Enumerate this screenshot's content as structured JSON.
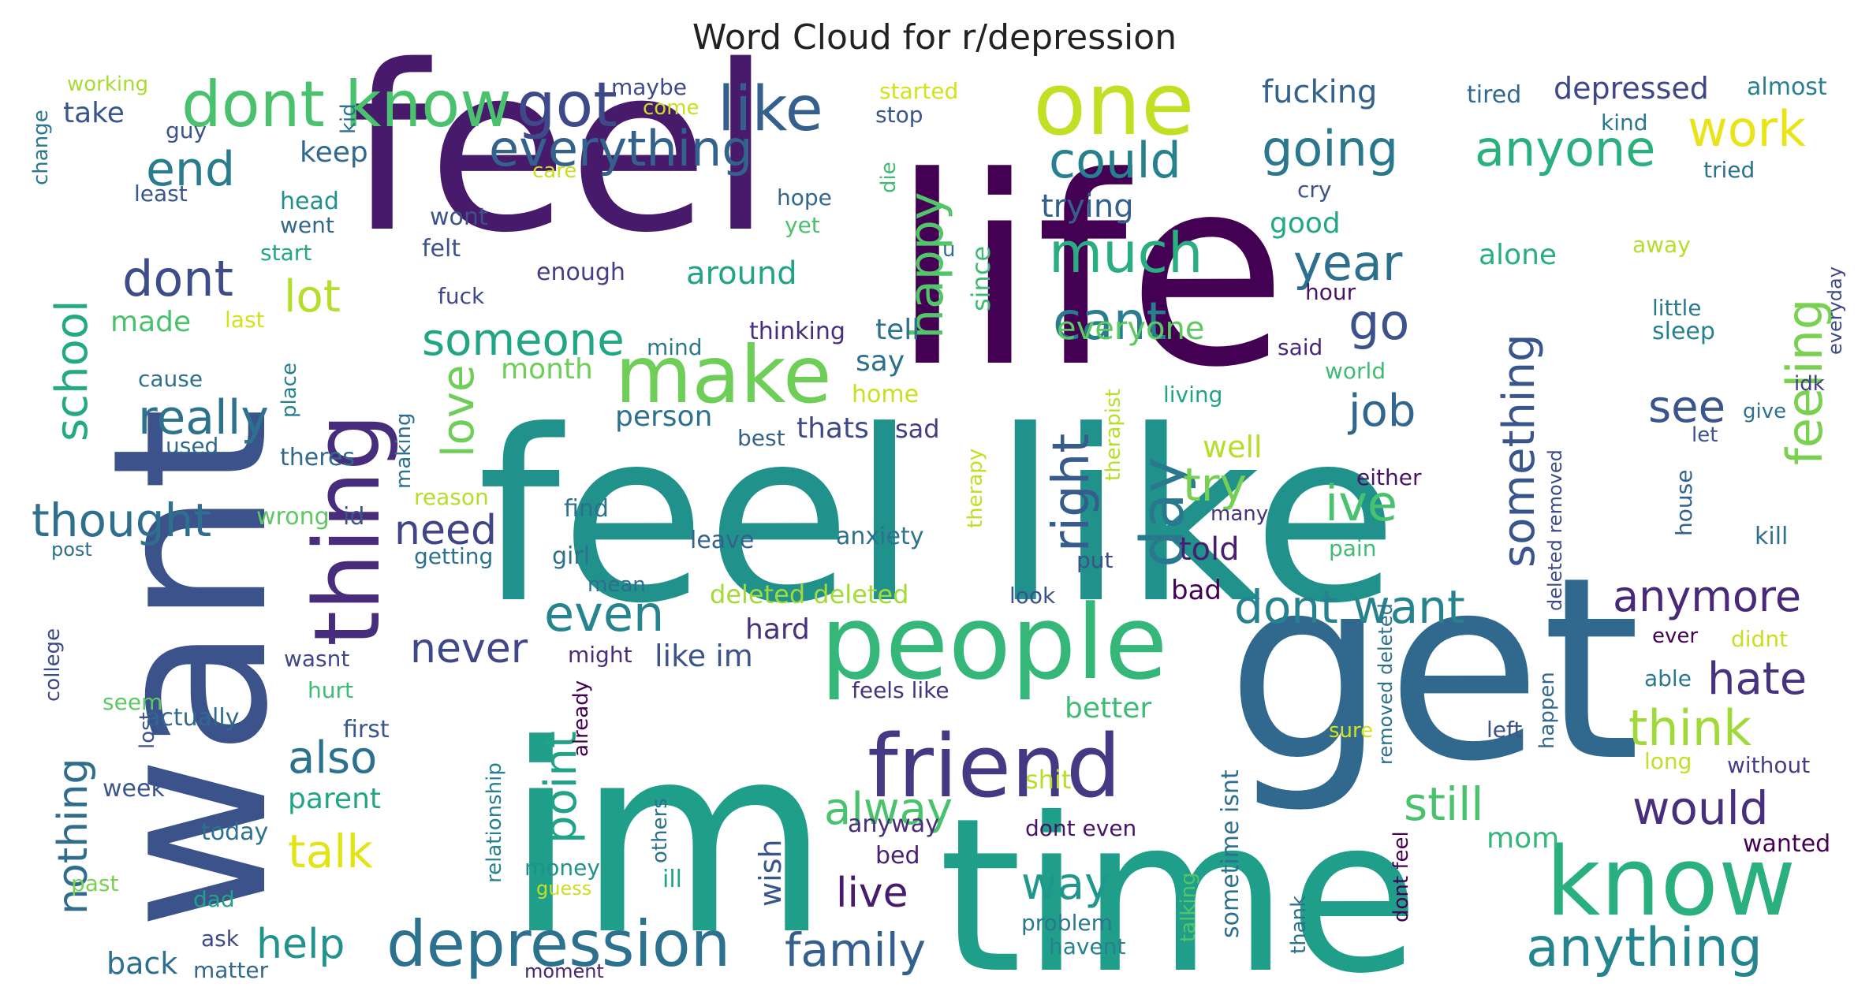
{
  "chart_data": {
    "type": "wordcloud",
    "title": "Word Cloud for r/depression",
    "words": [
      {
        "text": "feel",
        "size": 290,
        "color": "#481a6c"
      },
      {
        "text": "life",
        "size": 330,
        "color": "#440154"
      },
      {
        "text": "want",
        "size": 270,
        "color": "#3b528b"
      },
      {
        "text": "feel like",
        "size": 300,
        "color": "#21918c"
      },
      {
        "text": "im",
        "size": 330,
        "color": "#1f9e89"
      },
      {
        "text": "get",
        "size": 320,
        "color": "#31688e"
      },
      {
        "text": "time",
        "size": 270,
        "color": "#1f9e89"
      },
      {
        "text": "one",
        "size": 110,
        "color": "#c2df23"
      },
      {
        "text": "people",
        "size": 130,
        "color": "#35b779"
      },
      {
        "text": "thing",
        "size": 115,
        "color": "#472d7b"
      },
      {
        "text": "friend",
        "size": 110,
        "color": "#443983"
      },
      {
        "text": "know",
        "size": 120,
        "color": "#2ab07f"
      },
      {
        "text": "make",
        "size": 100,
        "color": "#6ece58"
      },
      {
        "text": "dont know",
        "size": 80,
        "color": "#4ac16d"
      },
      {
        "text": "got",
        "size": 78,
        "color": "#3e4989"
      },
      {
        "text": "like",
        "size": 78,
        "color": "#355f8d"
      },
      {
        "text": "depression",
        "size": 80,
        "color": "#2c728e"
      },
      {
        "text": "anything",
        "size": 68,
        "color": "#25858e"
      },
      {
        "text": "work",
        "size": 62,
        "color": "#e8e419"
      },
      {
        "text": "everything",
        "size": 62,
        "color": "#33638d"
      },
      {
        "text": "going",
        "size": 62,
        "color": "#2a788e"
      },
      {
        "text": "anyone",
        "size": 62,
        "color": "#2ab07f"
      },
      {
        "text": "could",
        "size": 62,
        "color": "#26818e"
      },
      {
        "text": "much",
        "size": 70,
        "color": "#29af7f"
      },
      {
        "text": "cant",
        "size": 66,
        "color": "#287d8e"
      },
      {
        "text": "year",
        "size": 62,
        "color": "#2d708e"
      },
      {
        "text": "feeling",
        "size": 62,
        "color": "#7ad151"
      },
      {
        "text": "end",
        "size": 60,
        "color": "#287c8e"
      },
      {
        "text": "dont",
        "size": 62,
        "color": "#3e4c8a"
      },
      {
        "text": "lot",
        "size": 56,
        "color": "#b5de2b"
      },
      {
        "text": "happy",
        "size": 60,
        "color": "#52c569"
      },
      {
        "text": "school",
        "size": 56,
        "color": "#24aa83"
      },
      {
        "text": "someone",
        "size": 56,
        "color": "#21a685"
      },
      {
        "text": "go",
        "size": 62,
        "color": "#3b528b"
      },
      {
        "text": "day",
        "size": 76,
        "color": "#2a788e"
      },
      {
        "text": "right",
        "size": 64,
        "color": "#365c8d"
      },
      {
        "text": "something",
        "size": 56,
        "color": "#39568c"
      },
      {
        "text": "see",
        "size": 56,
        "color": "#3a548c"
      },
      {
        "text": "job",
        "size": 56,
        "color": "#31678e"
      },
      {
        "text": "really",
        "size": 60,
        "color": "#2c728e"
      },
      {
        "text": "love",
        "size": 56,
        "color": "#6ece58"
      },
      {
        "text": "thought",
        "size": 58,
        "color": "#2e6e8e"
      },
      {
        "text": "need",
        "size": 52,
        "color": "#414487"
      },
      {
        "text": "try",
        "size": 58,
        "color": "#75d054"
      },
      {
        "text": "ive",
        "size": 62,
        "color": "#4ac16d"
      },
      {
        "text": "even",
        "size": 62,
        "color": "#25848e"
      },
      {
        "text": "dont want",
        "size": 58,
        "color": "#26828e"
      },
      {
        "text": "anymore",
        "size": 54,
        "color": "#482979"
      },
      {
        "text": "never",
        "size": 52,
        "color": "#3f4788"
      },
      {
        "text": "point",
        "size": 56,
        "color": "#20a386"
      },
      {
        "text": "hate",
        "size": 56,
        "color": "#46337f"
      },
      {
        "text": "think",
        "size": 62,
        "color": "#a0da39"
      },
      {
        "text": "also",
        "size": 56,
        "color": "#2c728e"
      },
      {
        "text": "alway",
        "size": 56,
        "color": "#4ac16d"
      },
      {
        "text": "still",
        "size": 58,
        "color": "#4ac16d"
      },
      {
        "text": "would",
        "size": 58,
        "color": "#472f7d"
      },
      {
        "text": "nothing",
        "size": 52,
        "color": "#2f6c8e"
      },
      {
        "text": "talk",
        "size": 58,
        "color": "#e2e418"
      },
      {
        "text": "help",
        "size": 52,
        "color": "#20938c"
      },
      {
        "text": "way",
        "size": 56,
        "color": "#1f988b"
      },
      {
        "text": "family",
        "size": 58,
        "color": "#34608d"
      },
      {
        "text": "live",
        "size": 52,
        "color": "#481b6d"
      },
      {
        "text": "wish",
        "size": 38,
        "color": "#39568c"
      },
      {
        "text": "fucking",
        "size": 40,
        "color": "#33638d"
      },
      {
        "text": "depressed",
        "size": 38,
        "color": "#3f4788"
      },
      {
        "text": "almost",
        "size": 30,
        "color": "#26818e"
      },
      {
        "text": "tired",
        "size": 30,
        "color": "#31688e"
      },
      {
        "text": "kind",
        "size": 28,
        "color": "#2a788e"
      },
      {
        "text": "tried",
        "size": 28,
        "color": "#2c728e"
      },
      {
        "text": "cry",
        "size": 28,
        "color": "#3b528b"
      },
      {
        "text": "good",
        "size": 36,
        "color": "#22a884"
      },
      {
        "text": "trying",
        "size": 40,
        "color": "#34608d"
      },
      {
        "text": "alone",
        "size": 36,
        "color": "#29af7f"
      },
      {
        "text": "away",
        "size": 28,
        "color": "#b5de2b"
      },
      {
        "text": "little",
        "size": 28,
        "color": "#2a788e"
      },
      {
        "text": "sleep",
        "size": 30,
        "color": "#26818e"
      },
      {
        "text": "everyday",
        "size": 24,
        "color": "#3e4989"
      },
      {
        "text": "idk",
        "size": 26,
        "color": "#433e85"
      },
      {
        "text": "give",
        "size": 26,
        "color": "#2d718e"
      },
      {
        "text": "let",
        "size": 26,
        "color": "#3b528b"
      },
      {
        "text": "hour",
        "size": 28,
        "color": "#471365"
      },
      {
        "text": "said",
        "size": 28,
        "color": "#482677"
      },
      {
        "text": "world",
        "size": 28,
        "color": "#3fbc73"
      },
      {
        "text": "everyone",
        "size": 40,
        "color": "#5ec962"
      },
      {
        "text": "therapist",
        "size": 26,
        "color": "#b8de29"
      },
      {
        "text": "living",
        "size": 28,
        "color": "#20a386"
      },
      {
        "text": "well",
        "size": 38,
        "color": "#b5de2b"
      },
      {
        "text": "told",
        "size": 40,
        "color": "#481f70"
      },
      {
        "text": "either",
        "size": 28,
        "color": "#471365"
      },
      {
        "text": "many",
        "size": 26,
        "color": "#46327e"
      },
      {
        "text": "pain",
        "size": 28,
        "color": "#3fbc73"
      },
      {
        "text": "kill",
        "size": 30,
        "color": "#2d708e"
      },
      {
        "text": "house",
        "size": 28,
        "color": "#33638d"
      },
      {
        "text": "deleted removed",
        "size": 24,
        "color": "#3e4989"
      },
      {
        "text": "deleted deleted",
        "size": 32,
        "color": "#a2da37"
      },
      {
        "text": "removed deleted",
        "size": 24,
        "color": "#2d708e"
      },
      {
        "text": "bad",
        "size": 34,
        "color": "#440154"
      },
      {
        "text": "look",
        "size": 28,
        "color": "#3b528b"
      },
      {
        "text": "better",
        "size": 36,
        "color": "#3fbc73"
      },
      {
        "text": "sometime isnt",
        "size": 30,
        "color": "#2d708e"
      },
      {
        "text": "sure",
        "size": 26,
        "color": "#d2e21b"
      },
      {
        "text": "ever",
        "size": 26,
        "color": "#440154"
      },
      {
        "text": "didnt",
        "size": 28,
        "color": "#c8e020"
      },
      {
        "text": "able",
        "size": 28,
        "color": "#2a788e"
      },
      {
        "text": "happen",
        "size": 26,
        "color": "#31688e"
      },
      {
        "text": "left",
        "size": 28,
        "color": "#3b528b"
      },
      {
        "text": "long",
        "size": 28,
        "color": "#c2df23"
      },
      {
        "text": "without",
        "size": 28,
        "color": "#433e85"
      },
      {
        "text": "mom",
        "size": 36,
        "color": "#35b779"
      },
      {
        "text": "wanted",
        "size": 30,
        "color": "#440154"
      },
      {
        "text": "dont feel",
        "size": 26,
        "color": "#440154"
      },
      {
        "text": "thank",
        "size": 26,
        "color": "#2c728e"
      },
      {
        "text": "talking",
        "size": 26,
        "color": "#52c569"
      },
      {
        "text": "dont even",
        "size": 28,
        "color": "#481467"
      },
      {
        "text": "bed",
        "size": 30,
        "color": "#482173"
      },
      {
        "text": "anyway",
        "size": 30,
        "color": "#472d7b"
      },
      {
        "text": "problem",
        "size": 28,
        "color": "#2a788e"
      },
      {
        "text": "havent",
        "size": 28,
        "color": "#26818e"
      },
      {
        "text": "shit",
        "size": 32,
        "color": "#b5de2b"
      },
      {
        "text": "feels like",
        "size": 28,
        "color": "#46337f"
      },
      {
        "text": "hard",
        "size": 36,
        "color": "#46327e"
      },
      {
        "text": "like im",
        "size": 38,
        "color": "#3b528b"
      },
      {
        "text": "might",
        "size": 28,
        "color": "#472d7b"
      },
      {
        "text": "already",
        "size": 26,
        "color": "#440154"
      },
      {
        "text": "others",
        "size": 26,
        "color": "#2c728e"
      },
      {
        "text": "ill",
        "size": 30,
        "color": "#20a386"
      },
      {
        "text": "money",
        "size": 28,
        "color": "#21918c"
      },
      {
        "text": "guess",
        "size": 24,
        "color": "#c8e020"
      },
      {
        "text": "relationship",
        "size": 26,
        "color": "#26818e"
      },
      {
        "text": "first",
        "size": 30,
        "color": "#39568c"
      },
      {
        "text": "parent",
        "size": 36,
        "color": "#21a585"
      },
      {
        "text": "hurt",
        "size": 28,
        "color": "#3fbc73"
      },
      {
        "text": "wasnt",
        "size": 28,
        "color": "#3f4788"
      },
      {
        "text": "seem",
        "size": 28,
        "color": "#5ec962"
      },
      {
        "text": "actually",
        "size": 30,
        "color": "#31688e"
      },
      {
        "text": "lost",
        "size": 26,
        "color": "#3b528b"
      },
      {
        "text": "college",
        "size": 26,
        "color": "#3e4989"
      },
      {
        "text": "week",
        "size": 30,
        "color": "#39568c"
      },
      {
        "text": "today",
        "size": 30,
        "color": "#2c728e"
      },
      {
        "text": "past",
        "size": 28,
        "color": "#7ad151"
      },
      {
        "text": "dad",
        "size": 28,
        "color": "#20a386"
      },
      {
        "text": "ask",
        "size": 28,
        "color": "#3e4989"
      },
      {
        "text": "back",
        "size": 38,
        "color": "#2d708e"
      },
      {
        "text": "matter",
        "size": 28,
        "color": "#31688e"
      },
      {
        "text": "moment",
        "size": 24,
        "color": "#482677"
      },
      {
        "text": "post",
        "size": 24,
        "color": "#2d708e"
      },
      {
        "text": "getting",
        "size": 28,
        "color": "#2d708e"
      },
      {
        "text": "girl",
        "size": 30,
        "color": "#2d708e"
      },
      {
        "text": "mean",
        "size": 26,
        "color": "#2d708e"
      },
      {
        "text": "id",
        "size": 30,
        "color": "#3b528b"
      },
      {
        "text": "wrong",
        "size": 30,
        "color": "#5ec962"
      },
      {
        "text": "reason",
        "size": 28,
        "color": "#b5de2b"
      },
      {
        "text": "find",
        "size": 30,
        "color": "#2c728e"
      },
      {
        "text": "leave",
        "size": 30,
        "color": "#33638d"
      },
      {
        "text": "anxiety",
        "size": 30,
        "color": "#2c728e"
      },
      {
        "text": "put",
        "size": 28,
        "color": "#3b528b"
      },
      {
        "text": "therapy",
        "size": 26,
        "color": "#c2df23"
      },
      {
        "text": "best",
        "size": 28,
        "color": "#33638d"
      },
      {
        "text": "thats",
        "size": 36,
        "color": "#3e4989"
      },
      {
        "text": "sad",
        "size": 32,
        "color": "#433e85"
      },
      {
        "text": "person",
        "size": 36,
        "color": "#2c728e"
      },
      {
        "text": "month",
        "size": 36,
        "color": "#6ece58"
      },
      {
        "text": "home",
        "size": 30,
        "color": "#c8e020"
      },
      {
        "text": "say",
        "size": 36,
        "color": "#2d708e"
      },
      {
        "text": "tell",
        "size": 36,
        "color": "#2c728e"
      },
      {
        "text": "thinking",
        "size": 30,
        "color": "#472d7b"
      },
      {
        "text": "mind",
        "size": 28,
        "color": "#2a788e"
      },
      {
        "text": "place",
        "size": 26,
        "color": "#26818e"
      },
      {
        "text": "making",
        "size": 26,
        "color": "#2d708e"
      },
      {
        "text": "theres",
        "size": 30,
        "color": "#31688e"
      },
      {
        "text": "used",
        "size": 28,
        "color": "#31688e"
      },
      {
        "text": "cause",
        "size": 28,
        "color": "#2c728e"
      },
      {
        "text": "made",
        "size": 36,
        "color": "#4ac16d"
      },
      {
        "text": "last",
        "size": 28,
        "color": "#d2e21b"
      },
      {
        "text": "fuck",
        "size": 28,
        "color": "#3e4989"
      },
      {
        "text": "felt",
        "size": 30,
        "color": "#3b528b"
      },
      {
        "text": "enough",
        "size": 30,
        "color": "#433e85"
      },
      {
        "text": "around",
        "size": 40,
        "color": "#20a386"
      },
      {
        "text": "wont",
        "size": 30,
        "color": "#3b528b"
      },
      {
        "text": "start",
        "size": 28,
        "color": "#22a884"
      },
      {
        "text": "went",
        "size": 28,
        "color": "#31688e"
      },
      {
        "text": "head",
        "size": 30,
        "color": "#21918c"
      },
      {
        "text": "keep",
        "size": 36,
        "color": "#31688e"
      },
      {
        "text": "least",
        "size": 28,
        "color": "#39568c"
      },
      {
        "text": "change",
        "size": 26,
        "color": "#2a788e"
      },
      {
        "text": "take",
        "size": 36,
        "color": "#39568c"
      },
      {
        "text": "working",
        "size": 26,
        "color": "#a8db34"
      },
      {
        "text": "guy",
        "size": 28,
        "color": "#3b528b"
      },
      {
        "text": "kid",
        "size": 26,
        "color": "#2c728e"
      },
      {
        "text": "maybe",
        "size": 28,
        "color": "#3e4989"
      },
      {
        "text": "come",
        "size": 26,
        "color": "#c8e020"
      },
      {
        "text": "started",
        "size": 28,
        "color": "#d2e21b"
      },
      {
        "text": "stop",
        "size": 28,
        "color": "#39568c"
      },
      {
        "text": "die",
        "size": 26,
        "color": "#3fbc73"
      },
      {
        "text": "care",
        "size": 26,
        "color": "#c8e020"
      },
      {
        "text": "hope",
        "size": 28,
        "color": "#31688e"
      },
      {
        "text": "yet",
        "size": 28,
        "color": "#4ac16d"
      },
      {
        "text": "since",
        "size": 32,
        "color": "#3fbc73"
      },
      {
        "text": "u",
        "size": 26,
        "color": "#2d708e"
      }
    ]
  }
}
